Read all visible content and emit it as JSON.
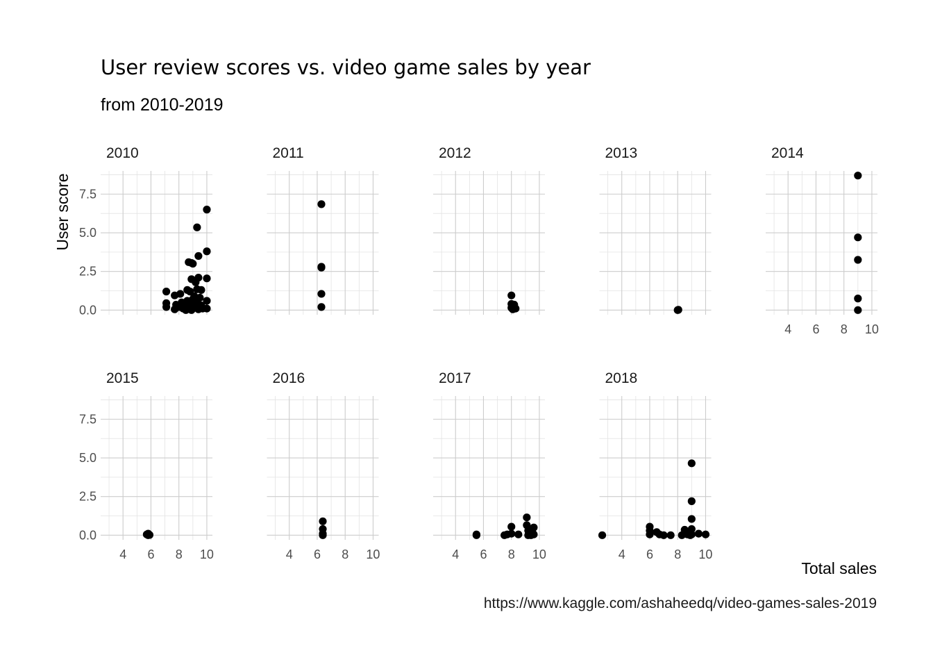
{
  "chart_data": {
    "type": "scatter",
    "title": "User review scores vs. video game sales by year",
    "subtitle": "from 2010-2019",
    "xlabel": "Total sales",
    "ylabel": "User score",
    "caption": "https://www.kaggle.com/ashaheedq/video-games-sales-2019",
    "xlim": [
      2.4,
      10.4
    ],
    "ylim": [
      -0.3,
      9.0
    ],
    "x_ticks": [
      4,
      6,
      8,
      10
    ],
    "y_ticks": [
      0.0,
      2.5,
      5.0,
      7.5
    ],
    "x_tick_labels": [
      "4",
      "6",
      "8",
      "10"
    ],
    "y_tick_labels": [
      "0.0",
      "2.5",
      "5.0",
      "7.5"
    ],
    "grid": true,
    "point_color": "#000000",
    "facet_columns": 5,
    "facets": [
      {
        "label": "2010",
        "points": [
          [
            10.0,
            6.5
          ],
          [
            9.3,
            5.35
          ],
          [
            10.0,
            3.8
          ],
          [
            9.4,
            3.5
          ],
          [
            8.7,
            3.1
          ],
          [
            9.0,
            3.0
          ],
          [
            8.9,
            3.05
          ],
          [
            10.0,
            2.05
          ],
          [
            8.9,
            2.0
          ],
          [
            9.4,
            2.1
          ],
          [
            9.2,
            1.8
          ],
          [
            7.1,
            1.2
          ],
          [
            7.7,
            0.95
          ],
          [
            8.1,
            1.05
          ],
          [
            8.6,
            1.3
          ],
          [
            8.8,
            1.2
          ],
          [
            9.3,
            1.35
          ],
          [
            9.6,
            1.3
          ],
          [
            7.1,
            0.45
          ],
          [
            7.1,
            0.2
          ],
          [
            7.7,
            0.05
          ],
          [
            7.8,
            0.35
          ],
          [
            8.0,
            0.2
          ],
          [
            8.2,
            0.5
          ],
          [
            8.3,
            0.1
          ],
          [
            8.4,
            0.3
          ],
          [
            8.5,
            0.0
          ],
          [
            8.6,
            0.6
          ],
          [
            8.7,
            0.2
          ],
          [
            8.8,
            0.4
          ],
          [
            8.9,
            0.0
          ],
          [
            9.0,
            0.7
          ],
          [
            9.05,
            0.3
          ],
          [
            9.1,
            0.9
          ],
          [
            9.2,
            0.15
          ],
          [
            9.3,
            0.5
          ],
          [
            9.4,
            0.05
          ],
          [
            9.5,
            0.8
          ],
          [
            9.6,
            0.3
          ],
          [
            9.7,
            0.1
          ],
          [
            10.0,
            0.6
          ],
          [
            10.0,
            0.1
          ]
        ]
      },
      {
        "label": "2011",
        "points": [
          [
            6.3,
            6.85
          ],
          [
            6.3,
            2.8
          ],
          [
            6.3,
            2.75
          ],
          [
            6.3,
            1.05
          ],
          [
            6.3,
            0.2
          ]
        ]
      },
      {
        "label": "2012",
        "points": [
          [
            8.0,
            0.95
          ],
          [
            8.0,
            0.4
          ],
          [
            8.2,
            0.35
          ],
          [
            8.0,
            0.15
          ],
          [
            8.3,
            0.1
          ],
          [
            8.1,
            0.05
          ],
          [
            8.2,
            0.2
          ]
        ]
      },
      {
        "label": "2013",
        "points": [
          [
            8.0,
            0.0
          ],
          [
            8.05,
            0.02
          ]
        ]
      },
      {
        "label": "2014",
        "points": [
          [
            9.0,
            8.7
          ],
          [
            9.0,
            4.7
          ],
          [
            9.0,
            3.25
          ],
          [
            9.0,
            0.75
          ],
          [
            9.0,
            0.0
          ]
        ]
      },
      {
        "label": "2015",
        "points": [
          [
            5.8,
            0.1
          ],
          [
            5.8,
            0.0
          ],
          [
            5.7,
            0.05
          ],
          [
            5.9,
            0.02
          ]
        ]
      },
      {
        "label": "2016",
        "points": [
          [
            6.4,
            0.9
          ],
          [
            6.4,
            0.4
          ],
          [
            6.4,
            0.1
          ],
          [
            6.4,
            0.0
          ]
        ]
      },
      {
        "label": "2017",
        "points": [
          [
            5.5,
            0.0
          ],
          [
            5.5,
            0.05
          ],
          [
            7.5,
            0.0
          ],
          [
            7.7,
            0.05
          ],
          [
            8.0,
            0.55
          ],
          [
            8.0,
            0.1
          ],
          [
            8.5,
            0.05
          ],
          [
            9.1,
            1.15
          ],
          [
            9.1,
            0.65
          ],
          [
            9.2,
            0.3
          ],
          [
            9.3,
            0.1
          ],
          [
            9.4,
            0.0
          ],
          [
            9.5,
            0.2
          ],
          [
            9.6,
            0.5
          ],
          [
            9.6,
            0.05
          ],
          [
            9.2,
            0.0
          ]
        ]
      },
      {
        "label": "2018",
        "points": [
          [
            2.6,
            0.0
          ],
          [
            6.0,
            0.55
          ],
          [
            6.0,
            0.3
          ],
          [
            6.0,
            0.05
          ],
          [
            6.5,
            0.2
          ],
          [
            6.7,
            0.05
          ],
          [
            7.0,
            0.0
          ],
          [
            7.5,
            0.0
          ],
          [
            8.3,
            0.0
          ],
          [
            8.5,
            0.35
          ],
          [
            8.7,
            0.05
          ],
          [
            9.0,
            4.65
          ],
          [
            9.0,
            2.2
          ],
          [
            9.0,
            1.05
          ],
          [
            9.0,
            0.4
          ],
          [
            9.0,
            0.05
          ],
          [
            9.5,
            0.1
          ],
          [
            10.0,
            0.05
          ],
          [
            8.9,
            0.0
          ]
        ]
      }
    ]
  }
}
